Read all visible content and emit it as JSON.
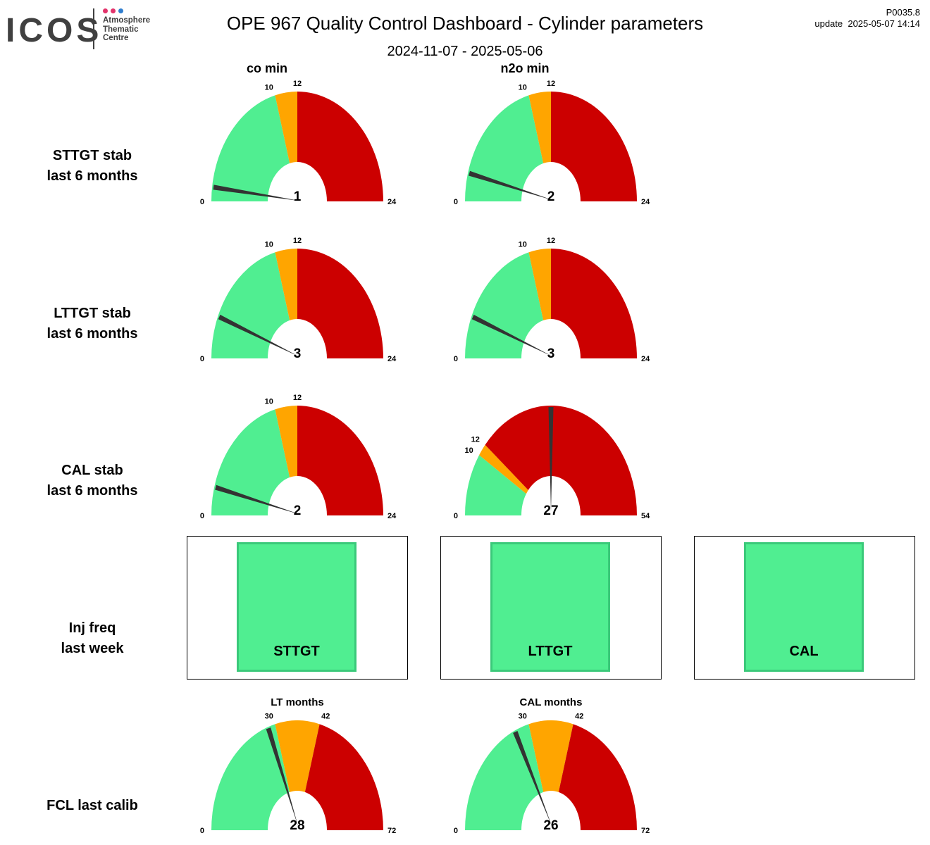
{
  "header": {
    "logo": {
      "text": "ICOS",
      "subtitle_lines": [
        "Atmosphere",
        "Thematic",
        "Centre"
      ],
      "dot_colors": [
        "#e2336b",
        "#e2336b",
        "#2f7ecf"
      ]
    },
    "title": "OPE 967 Quality Control Dashboard - Cylinder parameters",
    "date_range": "2024-11-07 - 2025-05-06",
    "version": "P0035.8",
    "update": "update  2025-05-07 14:14"
  },
  "colors": {
    "ok": "#50ee91",
    "warn": "#ffa500",
    "bad": "#cc0000",
    "needle": "#333333",
    "inj_border": "#3bc97a"
  },
  "columns": [
    "co min",
    "n2o min"
  ],
  "rows": [
    "STTGT stab\nlast 6 months",
    "LTTGT stab\nlast 6 months",
    "CAL stab\nlast 6 months",
    "Inj freq\nlast week",
    "FCL last calib"
  ],
  "chart_data": [
    {
      "type": "gauge",
      "id": "sttgt-co",
      "title": "",
      "min": 0,
      "max": 24,
      "thresholds": [
        10,
        12
      ],
      "value": 1,
      "value_label": "1",
      "ticks": [
        "0",
        "10",
        "12",
        "24"
      ]
    },
    {
      "type": "gauge",
      "id": "sttgt-n2o",
      "title": "",
      "min": 0,
      "max": 24,
      "thresholds": [
        10,
        12
      ],
      "value": 2,
      "value_label": "2",
      "ticks": [
        "0",
        "10",
        "12",
        "24"
      ]
    },
    {
      "type": "gauge",
      "id": "lttgt-co",
      "title": "",
      "min": 0,
      "max": 24,
      "thresholds": [
        10,
        12
      ],
      "value": 3,
      "value_label": "3",
      "ticks": [
        "0",
        "10",
        "12",
        "24"
      ]
    },
    {
      "type": "gauge",
      "id": "lttgt-n2o",
      "title": "",
      "min": 0,
      "max": 24,
      "thresholds": [
        10,
        12
      ],
      "value": 3,
      "value_label": "3",
      "ticks": [
        "0",
        "10",
        "12",
        "24"
      ]
    },
    {
      "type": "gauge",
      "id": "cal-co",
      "title": "",
      "min": 0,
      "max": 24,
      "thresholds": [
        10,
        12
      ],
      "value": 2,
      "value_label": "2",
      "ticks": [
        "0",
        "10",
        "12",
        "24"
      ]
    },
    {
      "type": "gauge",
      "id": "cal-n2o",
      "title": "",
      "min": 0,
      "max": 54,
      "thresholds": [
        10,
        12
      ],
      "value": 27,
      "value_label": "27",
      "ticks": [
        "0",
        "10",
        "12",
        "54"
      ]
    },
    {
      "type": "gauge",
      "id": "fcl-lt",
      "title": "LT months",
      "min": 0,
      "max": 72,
      "thresholds": [
        30,
        42
      ],
      "value": 28,
      "value_label": "28",
      "ticks": [
        "0",
        "30",
        "42",
        "72"
      ]
    },
    {
      "type": "gauge",
      "id": "fcl-cal",
      "title": "CAL months",
      "min": 0,
      "max": 72,
      "thresholds": [
        30,
        42
      ],
      "value": 26,
      "value_label": "26",
      "ticks": [
        "0",
        "30",
        "42",
        "72"
      ]
    }
  ],
  "inj_freq": [
    {
      "label": "STTGT",
      "status": "ok"
    },
    {
      "label": "LTTGT",
      "status": "ok"
    },
    {
      "label": "CAL",
      "status": "ok"
    }
  ]
}
